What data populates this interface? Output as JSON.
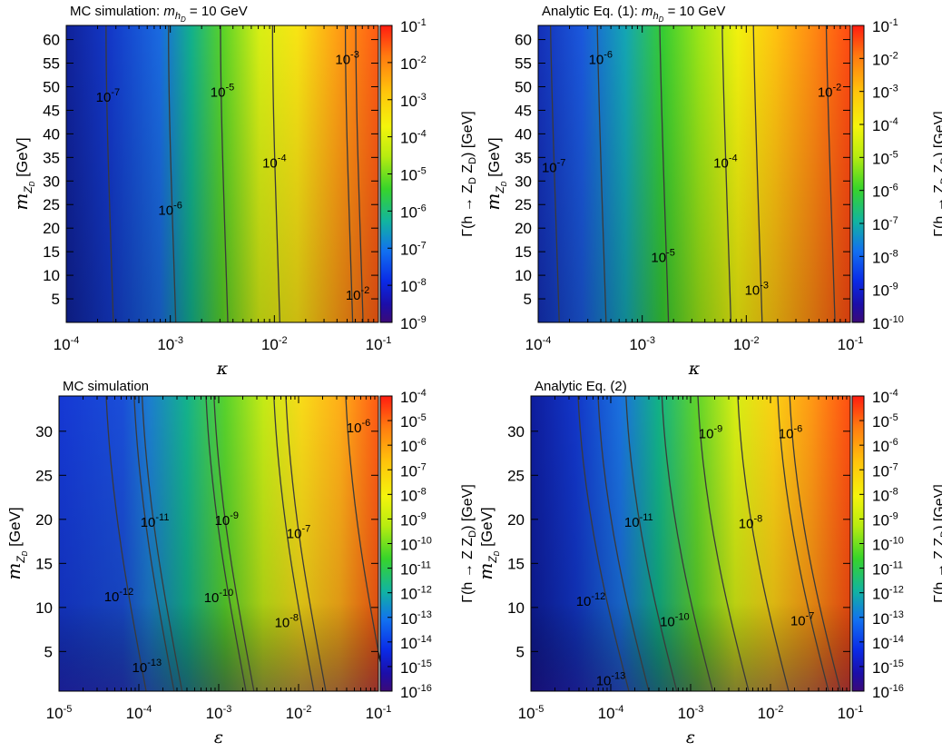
{
  "chart_data": [
    {
      "type": "heatmap",
      "panel": "top-left",
      "title_main": "MC simulation: ",
      "title_sym": "m",
      "title_sub": "h",
      "title_subsub": "D",
      "title_tail": " = 10 GeV",
      "xlabel": "κ",
      "ylabel_sym": "m",
      "ylabel_sub": "Z",
      "ylabel_subsub": "D",
      "ylabel_unit": " [GeV]",
      "x_ticks": [
        {
          "mant": "10",
          "exp": "-4"
        },
        {
          "mant": "10",
          "exp": "-3"
        },
        {
          "mant": "10",
          "exp": "-2"
        },
        {
          "mant": "10",
          "exp": "-1"
        }
      ],
      "xlim_log10": [
        -4,
        -1
      ],
      "y_ticks": [
        "5",
        "10",
        "15",
        "20",
        "25",
        "30",
        "35",
        "40",
        "45",
        "50",
        "55",
        "60"
      ],
      "ylim": [
        0,
        63
      ],
      "colorbar_label": "Γ(h → Z_D Z_D) [GeV]",
      "colorbar_ticks": [
        {
          "mant": "10",
          "exp": "-1"
        },
        {
          "mant": "10",
          "exp": "-2"
        },
        {
          "mant": "10",
          "exp": "-3"
        },
        {
          "mant": "10",
          "exp": "-4"
        },
        {
          "mant": "10",
          "exp": "-5"
        },
        {
          "mant": "10",
          "exp": "-6"
        },
        {
          "mant": "10",
          "exp": "-7"
        },
        {
          "mant": "10",
          "exp": "-8"
        },
        {
          "mant": "10",
          "exp": "-9"
        }
      ],
      "z_range_log10": [
        -9,
        -1
      ],
      "contour_labels": [
        {
          "mant": "10",
          "exp": "-7",
          "x_log10": -3.6,
          "y": 48
        },
        {
          "mant": "10",
          "exp": "-6",
          "x_log10": -3.0,
          "y": 24
        },
        {
          "mant": "10",
          "exp": "-5",
          "x_log10": -2.5,
          "y": 49
        },
        {
          "mant": "10",
          "exp": "-4",
          "x_log10": -2.0,
          "y": 34
        },
        {
          "mant": "10",
          "exp": "-3",
          "x_log10": -1.3,
          "y": 56
        },
        {
          "mant": "10",
          "exp": "-2",
          "x_log10": -1.2,
          "y": 6
        }
      ]
    },
    {
      "type": "heatmap",
      "panel": "top-right",
      "title_main": "Analytic Eq. (1): ",
      "title_sym": "m",
      "title_sub": "h",
      "title_subsub": "D",
      "title_tail": " = 10 GeV",
      "xlabel": "κ",
      "ylabel_sym": "m",
      "ylabel_sub": "Z",
      "ylabel_subsub": "D",
      "ylabel_unit": " [GeV]",
      "x_ticks": [
        {
          "mant": "10",
          "exp": "-4"
        },
        {
          "mant": "10",
          "exp": "-3"
        },
        {
          "mant": "10",
          "exp": "-2"
        },
        {
          "mant": "10",
          "exp": "-1"
        }
      ],
      "xlim_log10": [
        -4,
        -1
      ],
      "y_ticks": [
        "5",
        "10",
        "15",
        "20",
        "25",
        "30",
        "35",
        "40",
        "45",
        "50",
        "55",
        "60"
      ],
      "ylim": [
        0,
        63
      ],
      "colorbar_label": "Γ(h → Z_D Z_D) [GeV]",
      "colorbar_ticks": [
        {
          "mant": "10",
          "exp": "-1"
        },
        {
          "mant": "10",
          "exp": "-2"
        },
        {
          "mant": "10",
          "exp": "-3"
        },
        {
          "mant": "10",
          "exp": "-4"
        },
        {
          "mant": "10",
          "exp": "-5"
        },
        {
          "mant": "10",
          "exp": "-6"
        },
        {
          "mant": "10",
          "exp": "-7"
        },
        {
          "mant": "10",
          "exp": "-8"
        },
        {
          "mant": "10",
          "exp": "-9"
        },
        {
          "mant": "10",
          "exp": "-10"
        }
      ],
      "z_range_log10": [
        -10,
        -1
      ],
      "contour_labels": [
        {
          "mant": "10",
          "exp": "-7",
          "x_log10": -3.85,
          "y": 33
        },
        {
          "mant": "10",
          "exp": "-6",
          "x_log10": -3.4,
          "y": 56
        },
        {
          "mant": "10",
          "exp": "-5",
          "x_log10": -2.8,
          "y": 14
        },
        {
          "mant": "10",
          "exp": "-4",
          "x_log10": -2.2,
          "y": 34
        },
        {
          "mant": "10",
          "exp": "-3",
          "x_log10": -1.9,
          "y": 7
        },
        {
          "mant": "10",
          "exp": "-2",
          "x_log10": -1.2,
          "y": 49
        }
      ]
    },
    {
      "type": "heatmap",
      "panel": "bottom-left",
      "title_main": "MC simulation",
      "xlabel": "ε",
      "ylabel_sym": "m",
      "ylabel_sub": "Z",
      "ylabel_subsub": "D",
      "ylabel_unit": " [GeV]",
      "x_ticks": [
        {
          "mant": "10",
          "exp": "-5"
        },
        {
          "mant": "10",
          "exp": "-4"
        },
        {
          "mant": "10",
          "exp": "-3"
        },
        {
          "mant": "10",
          "exp": "-2"
        },
        {
          "mant": "10",
          "exp": "-1"
        }
      ],
      "xlim_log10": [
        -5,
        -1
      ],
      "y_ticks": [
        "5",
        "10",
        "15",
        "20",
        "25",
        "30"
      ],
      "ylim": [
        0.5,
        34
      ],
      "colorbar_label": "Γ(h → Z Z_D) [GeV]",
      "colorbar_ticks": [
        {
          "mant": "10",
          "exp": "-4"
        },
        {
          "mant": "10",
          "exp": "-5"
        },
        {
          "mant": "10",
          "exp": "-6"
        },
        {
          "mant": "10",
          "exp": "-7"
        },
        {
          "mant": "10",
          "exp": "-8"
        },
        {
          "mant": "10",
          "exp": "-9"
        },
        {
          "mant": "10",
          "exp": "-10"
        },
        {
          "mant": "10",
          "exp": "-11"
        },
        {
          "mant": "10",
          "exp": "-12"
        },
        {
          "mant": "10",
          "exp": "-13"
        },
        {
          "mant": "10",
          "exp": "-14"
        },
        {
          "mant": "10",
          "exp": "-15"
        },
        {
          "mant": "10",
          "exp": "-16"
        }
      ],
      "z_range_log10": [
        -16,
        -4
      ],
      "contour_labels": [
        {
          "mant": "10",
          "exp": "-11",
          "x_log10": -3.8,
          "y": 19.8
        },
        {
          "mant": "10",
          "exp": "-9",
          "x_log10": -2.9,
          "y": 20
        },
        {
          "mant": "10",
          "exp": "-7",
          "x_log10": -2.0,
          "y": 18.5
        },
        {
          "mant": "10",
          "exp": "-6",
          "x_log10": -1.25,
          "y": 30.5
        },
        {
          "mant": "10",
          "exp": "-12",
          "x_log10": -4.25,
          "y": 11.3
        },
        {
          "mant": "10",
          "exp": "-10",
          "x_log10": -3.0,
          "y": 11.2
        },
        {
          "mant": "10",
          "exp": "-8",
          "x_log10": -2.15,
          "y": 8.4
        },
        {
          "mant": "10",
          "exp": "-13",
          "x_log10": -3.9,
          "y": 3.3
        }
      ]
    },
    {
      "type": "heatmap",
      "panel": "bottom-right",
      "title_main": "Analytic Eq. (2)",
      "xlabel": "ε",
      "ylabel_sym": "m",
      "ylabel_sub": "Z",
      "ylabel_subsub": "D",
      "ylabel_unit": " [GeV]",
      "x_ticks": [
        {
          "mant": "10",
          "exp": "-5"
        },
        {
          "mant": "10",
          "exp": "-4"
        },
        {
          "mant": "10",
          "exp": "-3"
        },
        {
          "mant": "10",
          "exp": "-2"
        },
        {
          "mant": "10",
          "exp": "-1"
        }
      ],
      "xlim_log10": [
        -5,
        -1
      ],
      "y_ticks": [
        "5",
        "10",
        "15",
        "20",
        "25",
        "30"
      ],
      "ylim": [
        0.5,
        34
      ],
      "colorbar_label": "Γ(h → Z Z_D) [GeV]",
      "colorbar_ticks": [
        {
          "mant": "10",
          "exp": "-4"
        },
        {
          "mant": "10",
          "exp": "-5"
        },
        {
          "mant": "10",
          "exp": "-6"
        },
        {
          "mant": "10",
          "exp": "-7"
        },
        {
          "mant": "10",
          "exp": "-8"
        },
        {
          "mant": "10",
          "exp": "-9"
        },
        {
          "mant": "10",
          "exp": "-10"
        },
        {
          "mant": "10",
          "exp": "-11"
        },
        {
          "mant": "10",
          "exp": "-12"
        },
        {
          "mant": "10",
          "exp": "-13"
        },
        {
          "mant": "10",
          "exp": "-14"
        },
        {
          "mant": "10",
          "exp": "-15"
        },
        {
          "mant": "10",
          "exp": "-16"
        }
      ],
      "z_range_log10": [
        -16,
        -4
      ],
      "contour_labels": [
        {
          "mant": "10",
          "exp": "-11",
          "x_log10": -3.65,
          "y": 19.8
        },
        {
          "mant": "10",
          "exp": "-9",
          "x_log10": -2.75,
          "y": 29.8
        },
        {
          "mant": "10",
          "exp": "-6",
          "x_log10": -1.75,
          "y": 29.8
        },
        {
          "mant": "10",
          "exp": "-8",
          "x_log10": -2.25,
          "y": 19.6
        },
        {
          "mant": "10",
          "exp": "-12",
          "x_log10": -4.25,
          "y": 10.8
        },
        {
          "mant": "10",
          "exp": "-10",
          "x_log10": -3.2,
          "y": 8.5
        },
        {
          "mant": "10",
          "exp": "-7",
          "x_log10": -1.6,
          "y": 8.6
        },
        {
          "mant": "10",
          "exp": "-13",
          "x_log10": -4.0,
          "y": 1.8
        }
      ]
    }
  ]
}
